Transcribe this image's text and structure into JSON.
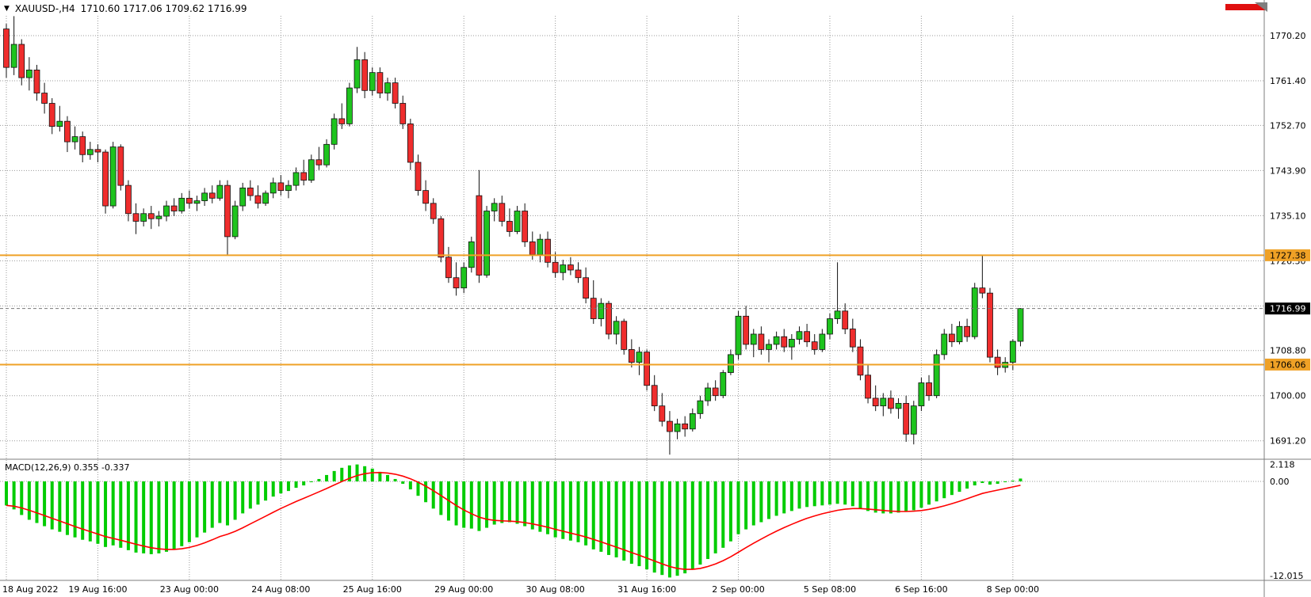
{
  "header": {
    "dropdown_icon": "▼",
    "symbol_timeframe": "XAUUSD-,H4",
    "ohlc": "1710.60 1717.06 1709.62 1716.99"
  },
  "macd_panel": {
    "title": "MACD(12,26,9) 0.355 -0.337"
  },
  "colors": {
    "background": "#ffffff",
    "up": "#1ec41e",
    "down": "#ef2d2d",
    "wick": "#111111",
    "grid": "#9a9a9a",
    "macd_hist": "#00cc00",
    "macd_signal": "#ff0000",
    "level_line": "#efa126",
    "current_price_bg": "#000000",
    "current_price_fg": "#ffffff",
    "separator": "#7c7c7c",
    "scroll_indicator": "#e01010",
    "shift_marker": "#7f7f7f"
  },
  "chart_data": {
    "type": "candlestick",
    "symbol": "XAUUSD-",
    "timeframe": "H4",
    "last_bar_ohlc": {
      "open": 1710.6,
      "high": 1717.06,
      "low": 1709.62,
      "close": 1716.99
    },
    "current_price": 1716.99,
    "current_price_label": "1716.99",
    "price_axis": {
      "ticks": [
        1770.2,
        1761.4,
        1752.7,
        1743.9,
        1735.1,
        1726.3,
        1717.5,
        1708.8,
        1700.0,
        1691.2
      ],
      "hidden_tick_label": 1717.5,
      "range": [
        1687.0,
        1774.5
      ]
    },
    "levels": [
      {
        "price": 1727.38,
        "label": "1727.38"
      },
      {
        "price": 1706.06,
        "label": "1706.06"
      }
    ],
    "time_axis": {
      "ticks": [
        {
          "bar": 0,
          "label": "18 Aug 2022"
        },
        {
          "bar": 12,
          "label": "19 Aug 16:00"
        },
        {
          "bar": 24,
          "label": "23 Aug 00:00"
        },
        {
          "bar": 36,
          "label": "24 Aug 08:00"
        },
        {
          "bar": 48,
          "label": "25 Aug 16:00"
        },
        {
          "bar": 60,
          "label": "29 Aug 00:00"
        },
        {
          "bar": 72,
          "label": "30 Aug 08:00"
        },
        {
          "bar": 84,
          "label": "31 Aug 16:00"
        },
        {
          "bar": 96,
          "label": "2 Sep 00:00"
        },
        {
          "bar": 108,
          "label": "5 Sep 08:00"
        },
        {
          "bar": 120,
          "label": "6 Sep 16:00"
        },
        {
          "bar": 132,
          "label": "8 Sep 00:00"
        }
      ]
    },
    "candles": [
      [
        1771.5,
        1772.5,
        1762.0,
        1764.0
      ],
      [
        1764.0,
        1774.0,
        1762.5,
        1768.5
      ],
      [
        1768.5,
        1769.5,
        1760.5,
        1762.0
      ],
      [
        1762.0,
        1766.0,
        1759.5,
        1763.5
      ],
      [
        1763.5,
        1764.5,
        1757.5,
        1759.0
      ],
      [
        1759.0,
        1761.0,
        1755.0,
        1757.0
      ],
      [
        1757.0,
        1758.0,
        1751.0,
        1752.5
      ],
      [
        1752.5,
        1756.5,
        1751.5,
        1753.5
      ],
      [
        1753.5,
        1754.5,
        1747.5,
        1749.5
      ],
      [
        1749.5,
        1752.5,
        1748.0,
        1750.5
      ],
      [
        1750.5,
        1751.5,
        1745.5,
        1747.0
      ],
      [
        1747.0,
        1749.5,
        1746.0,
        1748.0
      ],
      [
        1748.0,
        1749.0,
        1745.5,
        1747.5
      ],
      [
        1747.5,
        1748.0,
        1735.5,
        1737.0
      ],
      [
        1737.0,
        1749.5,
        1736.5,
        1748.5
      ],
      [
        1748.5,
        1749.0,
        1740.0,
        1741.0
      ],
      [
        1741.0,
        1742.0,
        1734.0,
        1735.5
      ],
      [
        1735.5,
        1737.5,
        1731.5,
        1734.0
      ],
      [
        1734.0,
        1736.5,
        1733.0,
        1735.5
      ],
      [
        1735.5,
        1737.0,
        1732.5,
        1734.5
      ],
      [
        1734.5,
        1736.0,
        1733.0,
        1735.0
      ],
      [
        1735.0,
        1738.0,
        1734.0,
        1737.0
      ],
      [
        1737.0,
        1738.5,
        1735.0,
        1736.0
      ],
      [
        1736.0,
        1739.5,
        1735.5,
        1738.5
      ],
      [
        1738.5,
        1740.0,
        1736.5,
        1737.5
      ],
      [
        1737.5,
        1739.0,
        1736.0,
        1738.0
      ],
      [
        1738.0,
        1740.5,
        1737.0,
        1739.5
      ],
      [
        1739.5,
        1741.0,
        1737.5,
        1738.5
      ],
      [
        1738.5,
        1742.0,
        1738.0,
        1741.0
      ],
      [
        1741.0,
        1742.0,
        1727.5,
        1731.0
      ],
      [
        1731.0,
        1738.0,
        1730.5,
        1737.0
      ],
      [
        1737.0,
        1741.5,
        1736.0,
        1740.5
      ],
      [
        1740.5,
        1742.0,
        1738.0,
        1739.0
      ],
      [
        1739.0,
        1741.0,
        1736.5,
        1737.5
      ],
      [
        1737.5,
        1740.0,
        1737.0,
        1739.5
      ],
      [
        1739.5,
        1742.5,
        1738.5,
        1741.5
      ],
      [
        1741.5,
        1743.0,
        1739.0,
        1740.0
      ],
      [
        1740.0,
        1742.0,
        1738.5,
        1741.0
      ],
      [
        1741.0,
        1744.5,
        1740.0,
        1743.5
      ],
      [
        1743.5,
        1746.0,
        1741.0,
        1742.0
      ],
      [
        1742.0,
        1747.0,
        1741.5,
        1746.0
      ],
      [
        1746.0,
        1748.5,
        1744.0,
        1745.0
      ],
      [
        1745.0,
        1750.0,
        1744.5,
        1749.0
      ],
      [
        1749.0,
        1755.0,
        1748.0,
        1754.0
      ],
      [
        1754.0,
        1757.0,
        1752.0,
        1753.0
      ],
      [
        1753.0,
        1761.0,
        1752.5,
        1760.0
      ],
      [
        1760.0,
        1768.0,
        1759.0,
        1765.5
      ],
      [
        1765.5,
        1767.0,
        1758.0,
        1759.5
      ],
      [
        1759.5,
        1764.0,
        1758.5,
        1763.0
      ],
      [
        1763.0,
        1764.0,
        1758.0,
        1759.0
      ],
      [
        1759.0,
        1762.0,
        1757.5,
        1761.0
      ],
      [
        1761.0,
        1762.0,
        1756.0,
        1757.0
      ],
      [
        1757.0,
        1758.5,
        1752.0,
        1753.0
      ],
      [
        1753.0,
        1754.0,
        1744.0,
        1745.5
      ],
      [
        1745.5,
        1747.0,
        1739.0,
        1740.0
      ],
      [
        1740.0,
        1742.0,
        1736.0,
        1737.5
      ],
      [
        1737.5,
        1738.5,
        1733.5,
        1734.5
      ],
      [
        1734.5,
        1735.0,
        1726.0,
        1727.0
      ],
      [
        1727.0,
        1729.0,
        1722.0,
        1723.0
      ],
      [
        1723.0,
        1726.0,
        1719.5,
        1721.0
      ],
      [
        1721.0,
        1726.0,
        1720.0,
        1725.0
      ],
      [
        1725.0,
        1731.0,
        1724.0,
        1730.0
      ],
      [
        1739.0,
        1744.0,
        1722.0,
        1723.5
      ],
      [
        1723.5,
        1737.0,
        1723.0,
        1736.0
      ],
      [
        1736.0,
        1738.5,
        1734.0,
        1737.5
      ],
      [
        1737.5,
        1739.0,
        1733.0,
        1734.0
      ],
      [
        1734.0,
        1736.5,
        1731.0,
        1732.0
      ],
      [
        1732.0,
        1737.0,
        1731.5,
        1736.0
      ],
      [
        1736.0,
        1737.5,
        1729.0,
        1730.0
      ],
      [
        1730.0,
        1732.0,
        1726.5,
        1727.5
      ],
      [
        1727.5,
        1731.5,
        1726.0,
        1730.5
      ],
      [
        1730.5,
        1732.0,
        1725.0,
        1726.0
      ],
      [
        1726.0,
        1728.0,
        1723.0,
        1724.0
      ],
      [
        1724.0,
        1726.5,
        1722.5,
        1725.5
      ],
      [
        1725.5,
        1727.0,
        1723.5,
        1724.5
      ],
      [
        1724.5,
        1726.0,
        1722.0,
        1723.0
      ],
      [
        1723.0,
        1725.0,
        1718.0,
        1719.0
      ],
      [
        1719.0,
        1722.5,
        1714.0,
        1715.0
      ],
      [
        1715.0,
        1719.0,
        1713.5,
        1718.0
      ],
      [
        1718.0,
        1718.5,
        1711.0,
        1712.0
      ],
      [
        1712.0,
        1715.5,
        1710.0,
        1714.5
      ],
      [
        1714.5,
        1715.0,
        1708.0,
        1709.0
      ],
      [
        1709.0,
        1711.0,
        1705.5,
        1706.5
      ],
      [
        1706.5,
        1709.5,
        1704.0,
        1708.5
      ],
      [
        1708.5,
        1709.0,
        1701.0,
        1702.0
      ],
      [
        1702.0,
        1704.0,
        1697.0,
        1698.0
      ],
      [
        1698.0,
        1700.5,
        1694.0,
        1695.0
      ],
      [
        1695.0,
        1697.0,
        1688.5,
        1693.0
      ],
      [
        1693.0,
        1695.5,
        1691.5,
        1694.5
      ],
      [
        1694.5,
        1696.0,
        1692.0,
        1693.5
      ],
      [
        1693.5,
        1697.5,
        1693.0,
        1696.5
      ],
      [
        1696.5,
        1700.0,
        1695.5,
        1699.0
      ],
      [
        1699.0,
        1702.5,
        1698.0,
        1701.5
      ],
      [
        1701.5,
        1703.0,
        1699.0,
        1700.0
      ],
      [
        1700.0,
        1705.0,
        1699.5,
        1704.5
      ],
      [
        1704.5,
        1709.0,
        1704.0,
        1708.0
      ],
      [
        1708.0,
        1716.5,
        1707.0,
        1715.5
      ],
      [
        1715.5,
        1717.5,
        1709.0,
        1710.0
      ],
      [
        1710.0,
        1713.0,
        1707.5,
        1712.0
      ],
      [
        1712.0,
        1713.5,
        1708.0,
        1709.0
      ],
      [
        1709.0,
        1711.0,
        1706.5,
        1710.0
      ],
      [
        1710.0,
        1712.5,
        1709.0,
        1711.5
      ],
      [
        1711.5,
        1713.0,
        1708.5,
        1709.5
      ],
      [
        1709.5,
        1712.0,
        1707.0,
        1711.0
      ],
      [
        1711.0,
        1713.5,
        1710.0,
        1712.5
      ],
      [
        1712.5,
        1714.0,
        1709.5,
        1710.5
      ],
      [
        1710.5,
        1712.0,
        1708.0,
        1709.0
      ],
      [
        1709.0,
        1713.0,
        1708.5,
        1712.0
      ],
      [
        1712.0,
        1716.0,
        1711.0,
        1715.0
      ],
      [
        1715.0,
        1726.0,
        1714.0,
        1716.5
      ],
      [
        1716.5,
        1718.0,
        1712.0,
        1713.0
      ],
      [
        1713.0,
        1715.0,
        1708.5,
        1709.5
      ],
      [
        1709.5,
        1711.0,
        1703.0,
        1704.0
      ],
      [
        1704.0,
        1706.0,
        1698.5,
        1699.5
      ],
      [
        1699.5,
        1702.0,
        1697.0,
        1698.0
      ],
      [
        1698.0,
        1700.5,
        1696.0,
        1699.5
      ],
      [
        1699.5,
        1701.0,
        1696.5,
        1697.5
      ],
      [
        1697.5,
        1699.5,
        1695.5,
        1698.5
      ],
      [
        1698.5,
        1700.0,
        1691.0,
        1692.5
      ],
      [
        1692.5,
        1699.0,
        1690.5,
        1698.0
      ],
      [
        1698.0,
        1703.5,
        1697.0,
        1702.5
      ],
      [
        1702.5,
        1704.0,
        1699.0,
        1700.0
      ],
      [
        1700.0,
        1709.0,
        1699.5,
        1708.0
      ],
      [
        1708.0,
        1713.0,
        1707.0,
        1712.0
      ],
      [
        1712.0,
        1714.0,
        1709.5,
        1710.5
      ],
      [
        1710.5,
        1714.5,
        1710.0,
        1713.5
      ],
      [
        1713.5,
        1715.0,
        1710.5,
        1711.5
      ],
      [
        1711.5,
        1722.0,
        1711.0,
        1721.0
      ],
      [
        1721.0,
        1727.5,
        1719.0,
        1720.0
      ],
      [
        1720.0,
        1721.0,
        1706.5,
        1707.5
      ],
      [
        1707.5,
        1709.0,
        1704.0,
        1705.5
      ],
      [
        1705.5,
        1707.5,
        1704.5,
        1706.5
      ],
      [
        1706.5,
        1711.0,
        1705.0,
        1710.6
      ],
      [
        1710.6,
        1717.06,
        1709.62,
        1716.99
      ]
    ],
    "macd": {
      "params": "12,26,9",
      "macd_value": 0.355,
      "signal_value": -0.337,
      "axis_labels": [
        {
          "value": 2.118,
          "label": "2.118"
        },
        {
          "value": 0,
          "label": "0.00"
        },
        {
          "value": -12.015,
          "label": "-12.015"
        }
      ],
      "histogram": [
        -3.0,
        -3.5,
        -4.2,
        -4.8,
        -5.2,
        -5.6,
        -6.0,
        -6.3,
        -6.7,
        -7.0,
        -7.3,
        -7.5,
        -7.8,
        -8.2,
        -8.0,
        -8.3,
        -8.6,
        -8.9,
        -9.0,
        -9.1,
        -9.0,
        -8.8,
        -8.5,
        -8.1,
        -7.6,
        -7.0,
        -6.4,
        -5.8,
        -5.2,
        -5.5,
        -4.8,
        -4.0,
        -3.4,
        -2.9,
        -2.4,
        -1.9,
        -1.5,
        -1.2,
        -0.8,
        -0.5,
        -0.1,
        0.3,
        0.8,
        1.3,
        1.7,
        2.0,
        2.118,
        1.9,
        1.6,
        1.2,
        0.8,
        0.3,
        -0.3,
        -1.0,
        -1.8,
        -2.6,
        -3.4,
        -4.2,
        -4.9,
        -5.5,
        -5.8,
        -5.9,
        -6.2,
        -5.8,
        -5.4,
        -5.2,
        -5.1,
        -5.3,
        -5.6,
        -6.0,
        -6.3,
        -6.6,
        -7.0,
        -7.2,
        -7.4,
        -7.6,
        -8.0,
        -8.5,
        -8.8,
        -9.2,
        -9.5,
        -9.9,
        -10.3,
        -10.6,
        -11.0,
        -11.4,
        -11.7,
        -12.015,
        -11.8,
        -11.5,
        -11.0,
        -10.4,
        -9.7,
        -9.0,
        -8.3,
        -7.5,
        -6.6,
        -6.0,
        -5.5,
        -5.1,
        -4.7,
        -4.3,
        -4.0,
        -3.7,
        -3.4,
        -3.2,
        -3.1,
        -3.0,
        -2.9,
        -2.8,
        -2.9,
        -3.1,
        -3.4,
        -3.7,
        -3.9,
        -4.0,
        -4.0,
        -3.9,
        -3.8,
        -3.6,
        -3.3,
        -2.9,
        -2.5,
        -2.1,
        -1.7,
        -1.3,
        -0.9,
        -0.5,
        -0.2,
        -0.4,
        -0.3,
        -0.1,
        0.1,
        0.355
      ],
      "signal_period": 9
    }
  }
}
